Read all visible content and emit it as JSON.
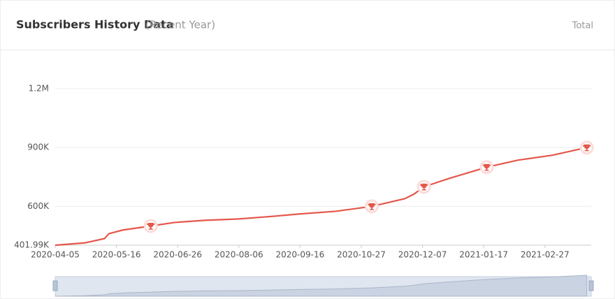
{
  "header": {
    "title": "Subscribers History Data",
    "subtitle": "(Recent Year)",
    "mode": "Total"
  },
  "chart_data": {
    "type": "line",
    "x": [
      "2020-04-05",
      "2020-04-25",
      "2020-05-08",
      "2020-05-11",
      "2020-05-20",
      "2020-06-08",
      "2020-06-24",
      "2020-07-14",
      "2020-08-06",
      "2020-08-30",
      "2020-09-15",
      "2020-10-10",
      "2020-11-03",
      "2020-11-25",
      "2020-12-01",
      "2020-12-08",
      "2020-12-25",
      "2021-01-19",
      "2021-02-09",
      "2021-03-04",
      "2021-03-27"
    ],
    "series": [
      {
        "name": "Subscribers",
        "color": "#e4574b",
        "values": [
          402000,
          414000,
          436000,
          461000,
          479000,
          500000,
          518000,
          529000,
          536000,
          550000,
          561000,
          575000,
          600000,
          639000,
          661000,
          700000,
          743000,
          800000,
          836000,
          861000,
          900000
        ]
      }
    ],
    "milestones": [
      {
        "x": "2020-06-08",
        "value": 500000
      },
      {
        "x": "2020-11-03",
        "value": 600000
      },
      {
        "x": "2020-12-08",
        "value": 700000
      },
      {
        "x": "2021-01-19",
        "value": 800000
      },
      {
        "x": "2021-03-27",
        "value": 900000
      }
    ],
    "xlim": [
      "2020-04-05",
      "2021-03-30"
    ],
    "xticks": [
      "2020-04-05",
      "2020-05-16",
      "2020-06-26",
      "2020-08-06",
      "2020-09-16",
      "2020-10-27",
      "2020-12-07",
      "2021-01-17",
      "2021-02-27"
    ],
    "ylim": [
      401990,
      1200000
    ],
    "yticks": [
      {
        "value": 401990,
        "label": "401.99K"
      },
      {
        "value": 600000,
        "label": "600K"
      },
      {
        "value": 900000,
        "label": "900K"
      },
      {
        "value": 1200000,
        "label": "1.2M"
      }
    ],
    "grid": true
  }
}
